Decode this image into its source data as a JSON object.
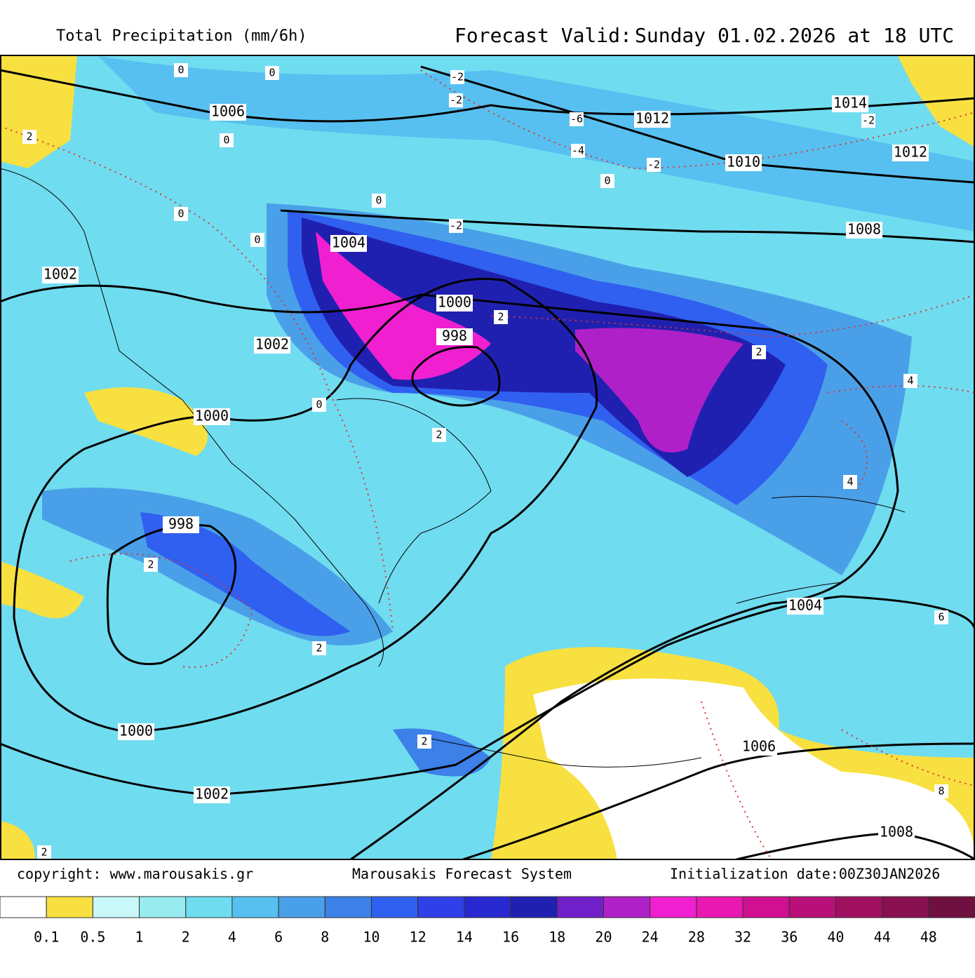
{
  "header": {
    "title": "Total Precipitation (mm/6h)",
    "valid_label": "Forecast Valid:",
    "valid_time": "Sunday 01.02.2026 at 18 UTC"
  },
  "footer": {
    "copyright": "copyright: www.marousakis.gr",
    "system": "Marousakis Forecast System",
    "init": "Initialization date:00Z30JAN2026"
  },
  "legend": {
    "colors": [
      "#ffffff",
      "#f8e040",
      "#c8f8f8",
      "#98ecf0",
      "#70dcf0",
      "#58c0f0",
      "#4aa0e8",
      "#3c80e8",
      "#3060f0",
      "#3040e8",
      "#2828d0",
      "#2020b0",
      "#7020c8",
      "#b020c8",
      "#f020d0",
      "#e818b0",
      "#d01090",
      "#b81078",
      "#a01060",
      "#881050",
      "#701040"
    ],
    "labels": [
      "0.1",
      "0.5",
      "1",
      "2",
      "4",
      "6",
      "8",
      "10",
      "12",
      "14",
      "16",
      "18",
      "20",
      "24",
      "28",
      "32",
      "36",
      "40",
      "44",
      "48"
    ]
  },
  "isobar_labels": [
    "1006",
    "1012",
    "1014",
    "1012",
    "1010",
    "1008",
    "1004",
    "1000",
    "998",
    "1002",
    "1002",
    "1000",
    "998",
    "1000",
    "1002",
    "1004",
    "1006",
    "1008"
  ],
  "temperature_labels": [
    "0",
    "0",
    "-2",
    "-2",
    "-6",
    "-4",
    "-2",
    "-2",
    "0",
    "2",
    "0",
    "0",
    "0",
    "-2",
    "2",
    "0",
    "2",
    "4",
    "4",
    "0",
    "2",
    "2",
    "2",
    "2",
    "8",
    "6",
    "2"
  ]
}
